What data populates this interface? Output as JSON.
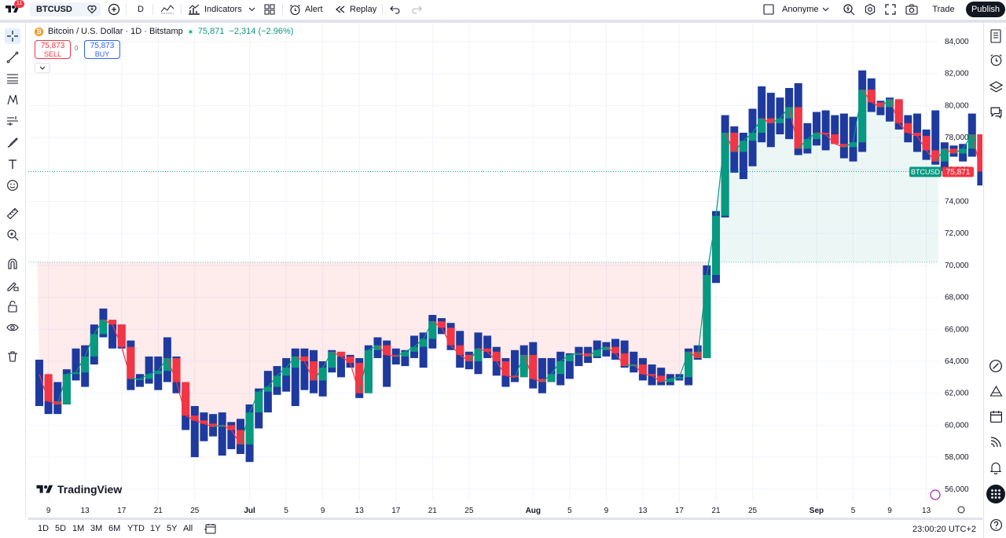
{
  "topbar": {
    "notifications": "11",
    "symbol": "BTCUSD",
    "interval": "D",
    "indicators_label": "Indicators",
    "alert_label": "Alert",
    "replay_label": "Replay",
    "layout_name": "Anonyme",
    "trade_label": "Trade",
    "publish_label": "Publish"
  },
  "legend": {
    "coin_symbol": "₿",
    "title": "Bitcoin / U.S. Dollar · 1D · Bitstamp",
    "last": "75,871",
    "change": "−2,314 (−2.96%)"
  },
  "trade_panel": {
    "sell_price": "75,873",
    "sell_label": "SELL",
    "spread": "0",
    "buy_price": "75,873",
    "buy_label": "BUY"
  },
  "watermark": "TradingView",
  "price_tag": {
    "symbol": "BTCUSD",
    "price": "75,871"
  },
  "colors": {
    "up": "#089981",
    "down": "#f23645",
    "bar_body": "#1e3a9e",
    "accent": "#2962ff"
  },
  "chart_data": {
    "type": "line",
    "series_style": "bars with colored segments and connecting line",
    "y_ticks": [
      "84,000",
      "82,000",
      "80,000",
      "78,000",
      "76,000",
      "74,000",
      "72,000",
      "70,000",
      "68,000",
      "66,000",
      "64,000",
      "62,000",
      "60,000",
      "58,000",
      "56,000"
    ],
    "ylim": [
      55500,
      84500
    ],
    "baseline": 70200,
    "last_price": 75871,
    "x_labels": [
      {
        "label": "9",
        "i": 1
      },
      {
        "label": "13",
        "i": 5
      },
      {
        "label": "17",
        "i": 9
      },
      {
        "label": "21",
        "i": 13
      },
      {
        "label": "25",
        "i": 17
      },
      {
        "label": "Jul",
        "i": 23,
        "bold": true
      },
      {
        "label": "5",
        "i": 27
      },
      {
        "label": "9",
        "i": 31
      },
      {
        "label": "13",
        "i": 35
      },
      {
        "label": "17",
        "i": 39
      },
      {
        "label": "21",
        "i": 43
      },
      {
        "label": "25",
        "i": 47
      },
      {
        "label": "Aug",
        "i": 54,
        "bold": true
      },
      {
        "label": "5",
        "i": 58
      },
      {
        "label": "9",
        "i": 62
      },
      {
        "label": "13",
        "i": 66
      },
      {
        "label": "17",
        "i": 70
      },
      {
        "label": "21",
        "i": 74
      },
      {
        "label": "25",
        "i": 78
      },
      {
        "label": "Sep",
        "i": 85,
        "bold": true
      },
      {
        "label": "5",
        "i": 89
      },
      {
        "label": "9",
        "i": 93
      },
      {
        "label": "13",
        "i": 97
      }
    ],
    "bars": [
      [
        64100,
        61200,
        63200
      ],
      [
        63000,
        60700,
        61500
      ],
      [
        62700,
        60700,
        61300
      ],
      [
        63500,
        61300,
        63200
      ],
      [
        64800,
        62800,
        63300
      ],
      [
        65000,
        62400,
        64300
      ],
      [
        66300,
        63800,
        65700
      ],
      [
        67300,
        65500,
        66600
      ],
      [
        66500,
        64800,
        66300
      ],
      [
        66300,
        64800,
        64900
      ],
      [
        65300,
        62200,
        62900
      ],
      [
        63200,
        62400,
        62900
      ],
      [
        64300,
        62600,
        63200
      ],
      [
        64300,
        62200,
        63400
      ],
      [
        65500,
        62700,
        64200
      ],
      [
        64300,
        62000,
        62700
      ],
      [
        62200,
        59700,
        60600
      ],
      [
        61200,
        58000,
        60300
      ],
      [
        60800,
        59000,
        60100
      ],
      [
        60700,
        59300,
        59900
      ],
      [
        60800,
        58100,
        60000
      ],
      [
        60200,
        58500,
        59700
      ],
      [
        60400,
        58200,
        58800
      ],
      [
        61300,
        57700,
        60800
      ],
      [
        62300,
        59800,
        62100
      ],
      [
        63400,
        60800,
        62400
      ],
      [
        63700,
        61900,
        63100
      ],
      [
        64200,
        62100,
        63600
      ],
      [
        64800,
        61200,
        64300
      ],
      [
        64800,
        62200,
        64000
      ],
      [
        64700,
        62000,
        62800
      ],
      [
        64000,
        61800,
        63600
      ],
      [
        64700,
        63300,
        64600
      ],
      [
        64500,
        63000,
        64300
      ],
      [
        64400,
        63600,
        63900
      ],
      [
        64200,
        61700,
        62000
      ],
      [
        65000,
        62300,
        64700
      ],
      [
        65500,
        64200,
        65000
      ],
      [
        65300,
        62400,
        64400
      ],
      [
        64800,
        63800,
        64300
      ],
      [
        64700,
        63700,
        64600
      ],
      [
        65600,
        64200,
        64900
      ],
      [
        65800,
        63600,
        65400
      ],
      [
        66900,
        64800,
        66500
      ],
      [
        66700,
        65700,
        66100
      ],
      [
        66400,
        64700,
        65000
      ],
      [
        65900,
        63600,
        64400
      ],
      [
        64600,
        63500,
        64000
      ],
      [
        65800,
        63200,
        64800
      ],
      [
        65600,
        64200,
        64600
      ],
      [
        64900,
        63100,
        64000
      ],
      [
        64200,
        62400,
        63100
      ],
      [
        64700,
        62700,
        63000
      ],
      [
        65000,
        63400,
        64400
      ],
      [
        65200,
        62300,
        62900
      ],
      [
        64200,
        62000,
        62700
      ],
      [
        64200,
        62700,
        63200
      ],
      [
        64600,
        62500,
        64000
      ],
      [
        64500,
        62900,
        64400
      ],
      [
        64900,
        63700,
        64500
      ],
      [
        64900,
        63900,
        64300
      ],
      [
        65300,
        64200,
        64700
      ],
      [
        65200,
        64300,
        64900
      ],
      [
        65400,
        64100,
        64500
      ],
      [
        65300,
        63600,
        63700
      ],
      [
        64600,
        63300,
        63800
      ],
      [
        64200,
        62800,
        63200
      ],
      [
        63800,
        62500,
        63100
      ],
      [
        63600,
        62500,
        62700
      ],
      [
        63200,
        62500,
        62900
      ],
      [
        63200,
        62800,
        63000
      ],
      [
        64800,
        62500,
        64600
      ],
      [
        65000,
        64100,
        64200
      ],
      [
        70000,
        64200,
        69400
      ],
      [
        73400,
        68900,
        73100
      ],
      [
        79400,
        73000,
        78300
      ],
      [
        78700,
        75800,
        77100
      ],
      [
        78300,
        75400,
        77800
      ],
      [
        79800,
        76200,
        78300
      ],
      [
        81200,
        77700,
        79200
      ],
      [
        80800,
        77400,
        78900
      ],
      [
        80500,
        78200,
        79200
      ],
      [
        81100,
        77900,
        79900
      ],
      [
        81400,
        76900,
        77300
      ],
      [
        78900,
        77000,
        77900
      ],
      [
        79600,
        77500,
        78300
      ],
      [
        79700,
        77200,
        78200
      ],
      [
        79400,
        77600,
        77600
      ],
      [
        79500,
        76700,
        77400
      ],
      [
        79300,
        76500,
        77700
      ],
      [
        82200,
        77100,
        81000
      ],
      [
        81700,
        79600,
        80200
      ],
      [
        80300,
        79400,
        79900
      ],
      [
        80500,
        79000,
        80400
      ],
      [
        80300,
        78500,
        78900
      ],
      [
        79400,
        77700,
        78300
      ],
      [
        79500,
        77100,
        78100
      ],
      [
        78500,
        76600,
        77200
      ],
      [
        79700,
        76300,
        76500
      ],
      [
        77700,
        75900,
        77300
      ],
      [
        77500,
        76800,
        77000
      ],
      [
        77600,
        76500,
        77300
      ],
      [
        79500,
        76800,
        78200
      ],
      [
        78200,
        75000,
        75871
      ]
    ]
  },
  "bottombar": {
    "ranges": [
      "1D",
      "5D",
      "1M",
      "3M",
      "6M",
      "YTD",
      "1Y",
      "5Y",
      "All"
    ],
    "time": "23:00:20 UTC+2"
  }
}
